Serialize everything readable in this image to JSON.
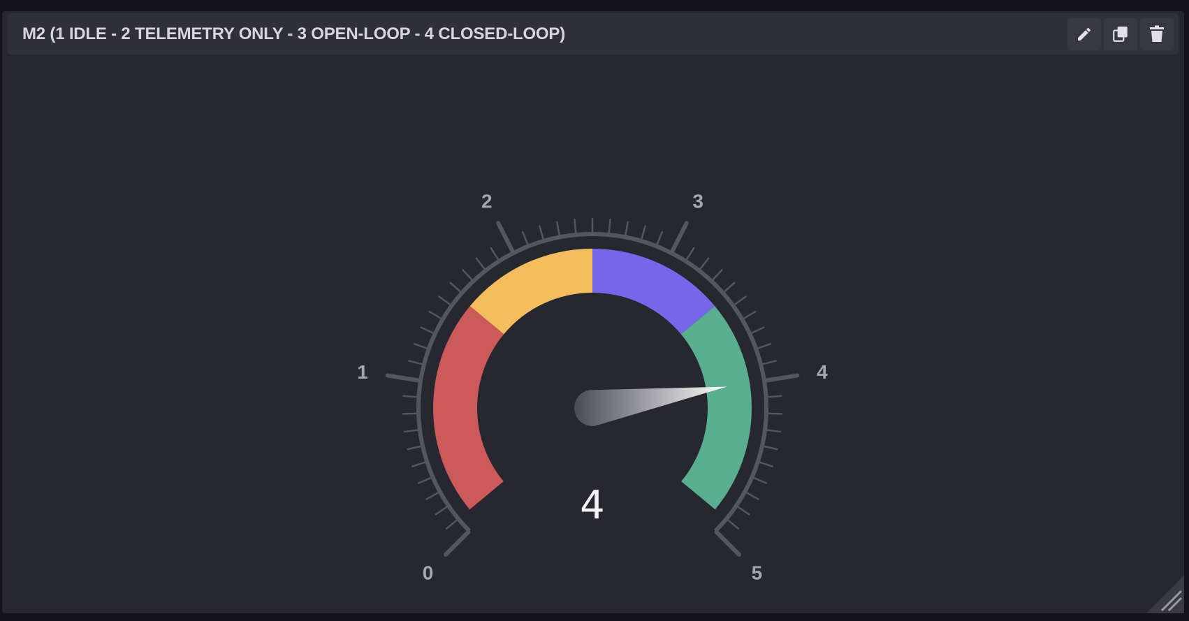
{
  "panel": {
    "title": "M2 (1 IDLE - 2 TELEMETRY ONLY - 3 OPEN-LOOP - 4 CLOSED-LOOP)",
    "actions": [
      {
        "name": "edit-button",
        "icon": "pencil-icon"
      },
      {
        "name": "duplicate-button",
        "icon": "copy-icon"
      },
      {
        "name": "delete-button",
        "icon": "trash-icon"
      }
    ]
  },
  "gauge": {
    "min": 0,
    "max": 5,
    "major_ticks": [
      "0",
      "1",
      "2",
      "3",
      "4",
      "5"
    ],
    "minor_divisions": 10,
    "value": 4,
    "value_label": "4",
    "bands": [
      {
        "from": 0.1,
        "to": 1.57,
        "color": "#cc5a5b"
      },
      {
        "from": 1.57,
        "to": 2.5,
        "color": "#f3bc5c"
      },
      {
        "from": 2.5,
        "to": 3.43,
        "color": "#7766ea"
      },
      {
        "from": 3.43,
        "to": 4.9,
        "color": "#58ae8e"
      }
    ],
    "tick_color": "#55555f",
    "label_color": "#a6a6ae"
  }
}
